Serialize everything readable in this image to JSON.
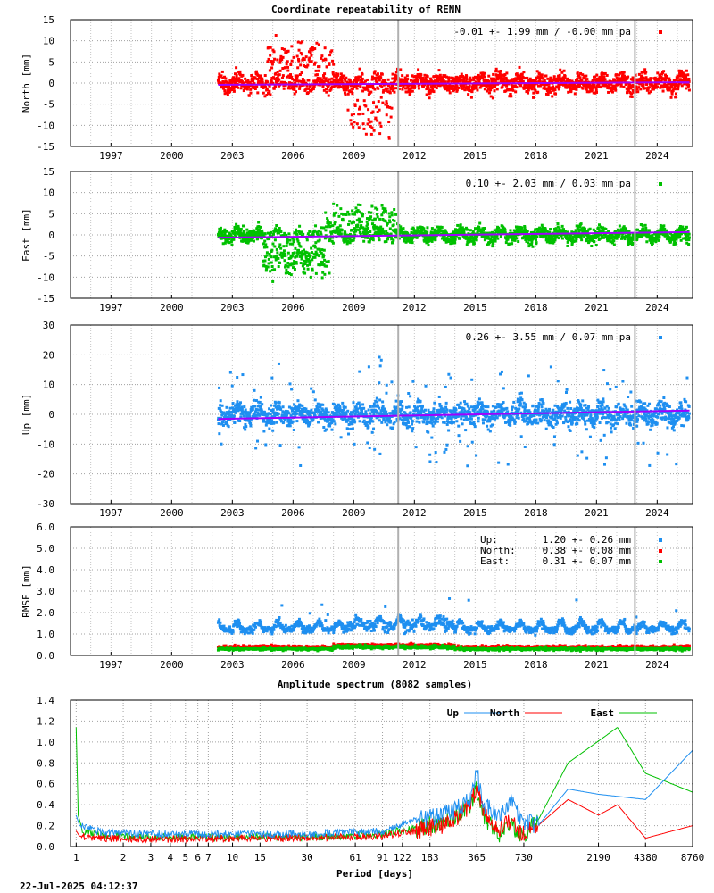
{
  "figure": {
    "title": "Coordinate repeatability of RENN",
    "timestamp": "22-Jul-2025 04:12:37",
    "colors": {
      "north": "#ff0000",
      "east": "#00c000",
      "up": "#1e8ff0",
      "trend": "#a000ff",
      "grid": "#a0a0a0",
      "marker": "#b0b0b0"
    }
  },
  "chart_data": [
    {
      "type": "scatter",
      "id": "north",
      "ylabel": "North [mm]",
      "ylim": [
        -15,
        15
      ],
      "yticks": [
        "15",
        "10",
        "5",
        "0",
        "-5",
        "-10",
        "-15"
      ],
      "xlim": [
        1995.0,
        2025.75
      ],
      "xticks": [
        "1997",
        "2000",
        "2003",
        "2006",
        "2009",
        "2012",
        "2015",
        "2018",
        "2021",
        "2024"
      ],
      "legend": "-0.01 +- 1.99 mm / -0.00 mm pa",
      "stats": {
        "trend_mm": -0.01,
        "sigma_mm": 1.99,
        "rate_mm_pa": -0.0
      },
      "data_span": [
        2002.3,
        2025.6
      ],
      "event_markers": [
        2011.2,
        2022.9
      ],
      "series": [
        {
          "name": "North",
          "color": "#ff0000"
        }
      ]
    },
    {
      "type": "scatter",
      "id": "east",
      "ylabel": "East [mm]",
      "ylim": [
        -15,
        15
      ],
      "yticks": [
        "15",
        "10",
        "5",
        "0",
        "-5",
        "-10",
        "-15"
      ],
      "xlim": [
        1995.0,
        2025.75
      ],
      "xticks": [
        "1997",
        "2000",
        "2003",
        "2006",
        "2009",
        "2012",
        "2015",
        "2018",
        "2021",
        "2024"
      ],
      "legend": " 0.10 +- 2.03 mm /  0.03 mm pa",
      "stats": {
        "trend_mm": 0.1,
        "sigma_mm": 2.03,
        "rate_mm_pa": 0.03
      },
      "data_span": [
        2002.3,
        2025.6
      ],
      "event_markers": [
        2011.2,
        2022.9
      ],
      "series": [
        {
          "name": "East",
          "color": "#00c000"
        }
      ]
    },
    {
      "type": "scatter",
      "id": "up",
      "ylabel": "Up [mm]",
      "ylim": [
        -30,
        30
      ],
      "yticks": [
        "30",
        "20",
        "10",
        "0",
        "-10",
        "-20",
        "-30"
      ],
      "xlim": [
        1995.0,
        2025.75
      ],
      "xticks": [
        "1997",
        "2000",
        "2003",
        "2006",
        "2009",
        "2012",
        "2015",
        "2018",
        "2021",
        "2024"
      ],
      "legend": " 0.26 +- 3.55 mm /  0.07 mm pa",
      "stats": {
        "trend_mm": 0.26,
        "sigma_mm": 3.55,
        "rate_mm_pa": 0.07
      },
      "data_span": [
        2002.3,
        2025.6
      ],
      "event_markers": [
        2011.2,
        2022.9
      ],
      "series": [
        {
          "name": "Up",
          "color": "#1e8ff0"
        }
      ]
    },
    {
      "type": "scatter",
      "id": "rmse",
      "ylabel": "RMSE [mm]",
      "ylim": [
        0,
        6
      ],
      "yticks": [
        "6.0",
        "5.0",
        "4.0",
        "3.0",
        "2.0",
        "1.0",
        "0.0"
      ],
      "xlim": [
        1995.0,
        2025.75
      ],
      "xticks": [
        "1997",
        "2000",
        "2003",
        "2006",
        "2009",
        "2012",
        "2015",
        "2018",
        "2021",
        "2024"
      ],
      "event_markers": [
        2011.2,
        2022.9
      ],
      "legend_rows": [
        {
          "name": "Up:",
          "value": "1.20 +- 0.26 mm",
          "color": "#1e8ff0"
        },
        {
          "name": "North:",
          "value": "0.38 +- 0.08 mm",
          "color": "#ff0000"
        },
        {
          "name": "East:",
          "value": "0.31 +- 0.07 mm",
          "color": "#00c000"
        }
      ],
      "series": [
        {
          "name": "Up",
          "mean": 1.2,
          "sigma": 0.26,
          "color": "#1e8ff0"
        },
        {
          "name": "North",
          "mean": 0.38,
          "sigma": 0.08,
          "color": "#ff0000"
        },
        {
          "name": "East",
          "mean": 0.31,
          "sigma": 0.07,
          "color": "#00c000"
        }
      ]
    },
    {
      "type": "line",
      "id": "spectrum",
      "title": "Amplitude spectrum (8082 samples)",
      "xlabel": "Period [days]",
      "xscale": "log",
      "xlim": [
        0.92,
        8760
      ],
      "ylim": [
        0,
        1.4
      ],
      "yticks": [
        "1.4",
        "1.2",
        "1.0",
        "0.8",
        "0.6",
        "0.4",
        "0.2",
        "0.0"
      ],
      "xtick_values": [
        1,
        2,
        3,
        4,
        5,
        6,
        7,
        10,
        15,
        30,
        61,
        91,
        122,
        183,
        365,
        730,
        2190,
        4380,
        8760
      ],
      "xtick_labels": [
        "1",
        "2",
        "3",
        "4",
        "5",
        "6",
        "7",
        "10",
        "15",
        "30",
        "61",
        "91",
        "122",
        "183",
        "365",
        "730",
        "2190",
        "4380",
        "8760"
      ],
      "legend": "top-right",
      "series": [
        {
          "name": "Up",
          "color": "#1e8ff0",
          "x": [
            1,
            1.05,
            1.5,
            3,
            10,
            30,
            91,
            150,
            250,
            330,
            365,
            400,
            500,
            600,
            700,
            900,
            1400,
            2190,
            4380,
            8760
          ],
          "y": [
            0.3,
            0.2,
            0.13,
            0.12,
            0.12,
            0.12,
            0.15,
            0.25,
            0.32,
            0.45,
            0.72,
            0.4,
            0.3,
            0.45,
            0.25,
            0.2,
            0.55,
            0.5,
            0.45,
            0.92
          ]
        },
        {
          "name": "North",
          "color": "#ff0000",
          "x": [
            1,
            1.05,
            1.5,
            3,
            10,
            30,
            91,
            150,
            250,
            330,
            365,
            400,
            500,
            600,
            700,
            900,
            1400,
            2190,
            2900,
            4380,
            8760
          ],
          "y": [
            0.15,
            0.1,
            0.08,
            0.07,
            0.08,
            0.08,
            0.1,
            0.15,
            0.22,
            0.4,
            0.57,
            0.35,
            0.15,
            0.25,
            0.12,
            0.2,
            0.45,
            0.3,
            0.4,
            0.08,
            0.2
          ]
        },
        {
          "name": "East",
          "color": "#00c000",
          "x": [
            1,
            1.03,
            1.1,
            1.5,
            3,
            10,
            30,
            91,
            150,
            250,
            330,
            365,
            400,
            500,
            600,
            700,
            900,
            1400,
            2900,
            4380,
            8760
          ],
          "y": [
            1.14,
            0.3,
            0.15,
            0.1,
            0.09,
            0.09,
            0.09,
            0.12,
            0.18,
            0.25,
            0.4,
            0.55,
            0.3,
            0.12,
            0.2,
            0.1,
            0.25,
            0.8,
            1.14,
            0.7,
            0.52
          ]
        }
      ]
    }
  ]
}
